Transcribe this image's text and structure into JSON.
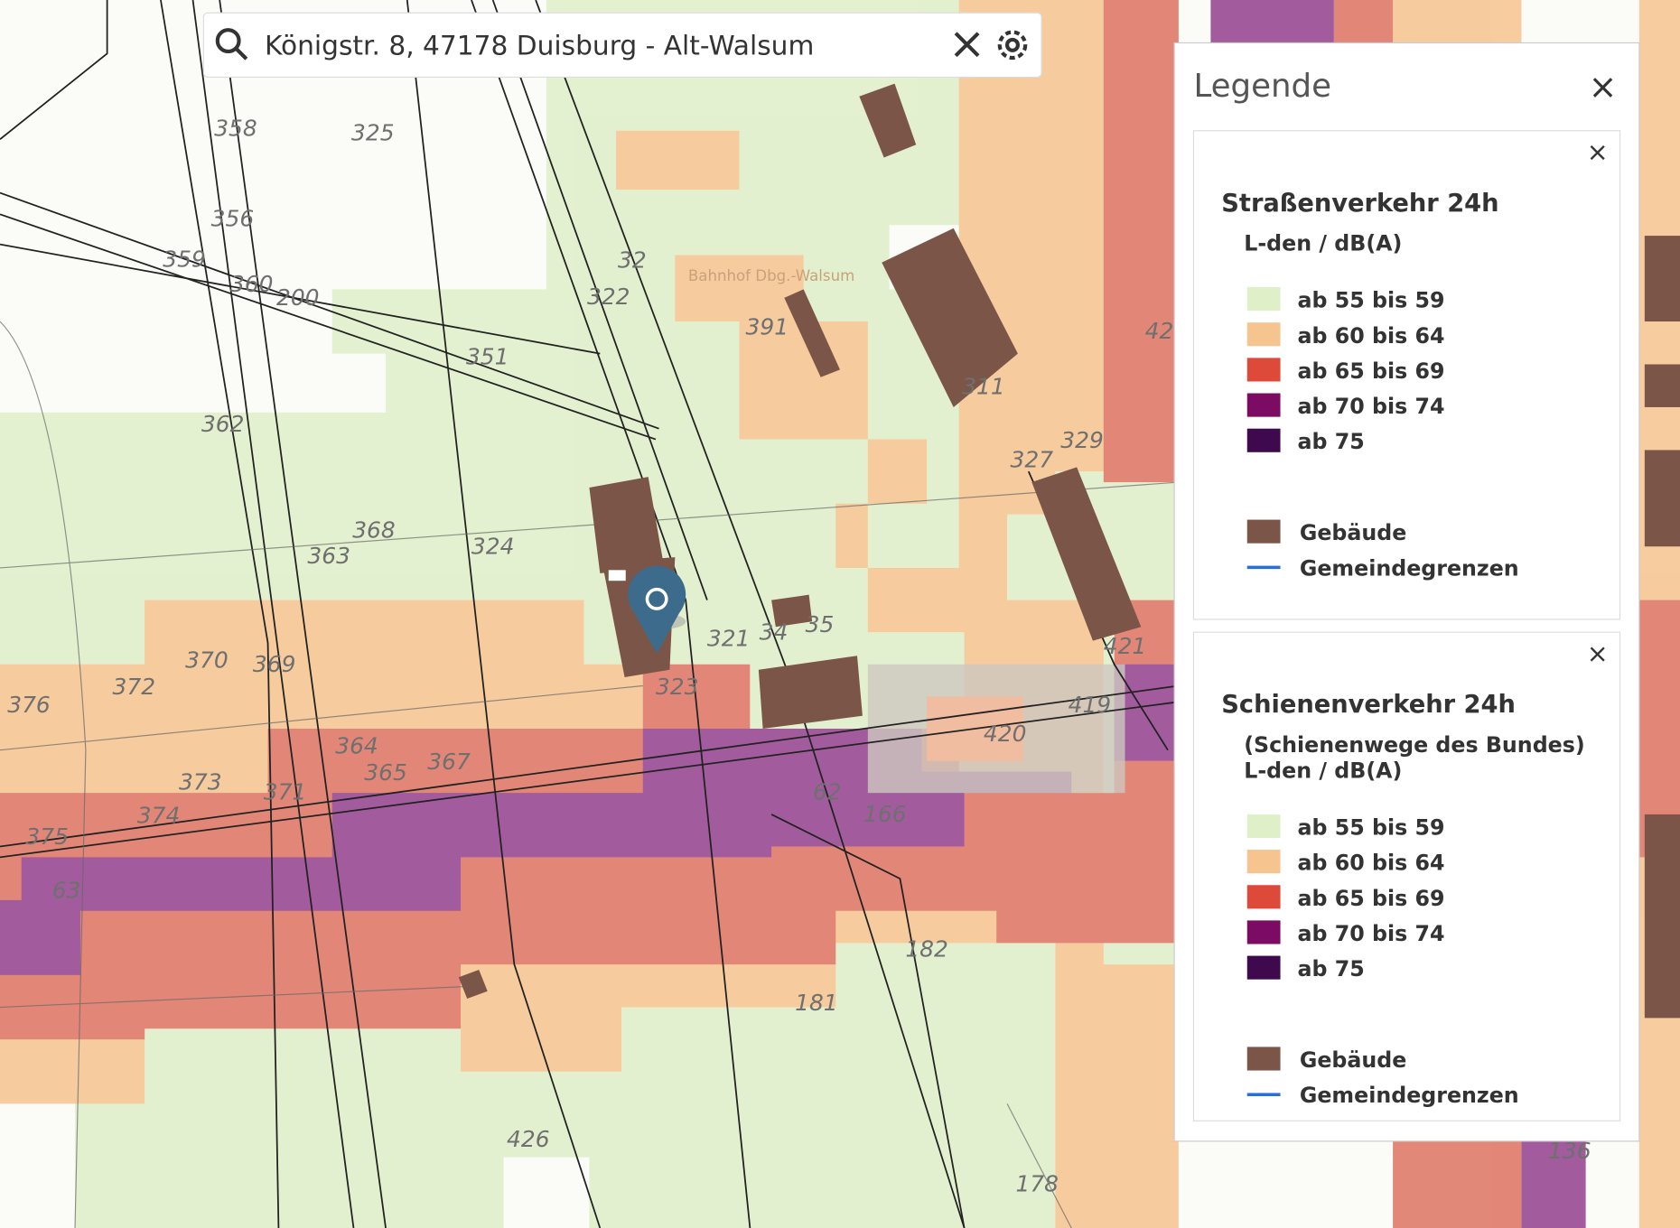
{
  "search": {
    "query": "Königstr. 8, 47178 Duisburg - Alt-Walsum"
  },
  "map": {
    "place_label": "Bahnhof Dbg.-Walsum",
    "parcel_labels": [
      "358",
      "325",
      "356",
      "359",
      "360",
      "200",
      "32",
      "322",
      "351",
      "362",
      "368",
      "363",
      "324",
      "321",
      "34",
      "35",
      "323",
      "370",
      "369",
      "372",
      "376",
      "364",
      "365",
      "367",
      "373",
      "371",
      "374",
      "375",
      "63",
      "62",
      "420",
      "419",
      "421",
      "329",
      "327",
      "311",
      "391",
      "42",
      "182",
      "181",
      "426",
      "178",
      "136",
      "166"
    ]
  },
  "legend": {
    "title": "Legende",
    "close": "×",
    "sections": [
      {
        "close": "×",
        "title": "Straßenverkehr 24h",
        "subtitles": [
          "L-den / dB(A)"
        ],
        "classes": [
          {
            "label": "ab 55 bis 59",
            "color": "#dff0c8"
          },
          {
            "label": "ab 60 bis 64",
            "color": "#f6c48e"
          },
          {
            "label": "ab 65 bis 69",
            "color": "#dd4a3a"
          },
          {
            "label": "ab 70 bis 74",
            "color": "#7c0b63"
          },
          {
            "label": "ab 75",
            "color": "#3e0a4d"
          }
        ],
        "features": [
          {
            "label": "Gebäude",
            "color": "#7b5548",
            "symbol": "fill"
          },
          {
            "label": "Gemeindegrenzen",
            "color": "#2a6fd8",
            "symbol": "line"
          }
        ]
      },
      {
        "close": "×",
        "title": "Schienenverkehr 24h",
        "subtitles": [
          "(Schienenwege des Bundes)",
          "L-den / dB(A)"
        ],
        "classes": [
          {
            "label": "ab 55 bis 59",
            "color": "#dff0c8"
          },
          {
            "label": "ab 60 bis 64",
            "color": "#f6c48e"
          },
          {
            "label": "ab 65 bis 69",
            "color": "#dd4a3a"
          },
          {
            "label": "ab 70 bis 74",
            "color": "#7c0b63"
          },
          {
            "label": "ab 75",
            "color": "#3e0a4d"
          }
        ],
        "features": [
          {
            "label": "Gebäude",
            "color": "#7b5548",
            "symbol": "fill"
          },
          {
            "label": "Gemeindegrenzen",
            "color": "#2a6fd8",
            "symbol": "line"
          }
        ]
      }
    ]
  }
}
